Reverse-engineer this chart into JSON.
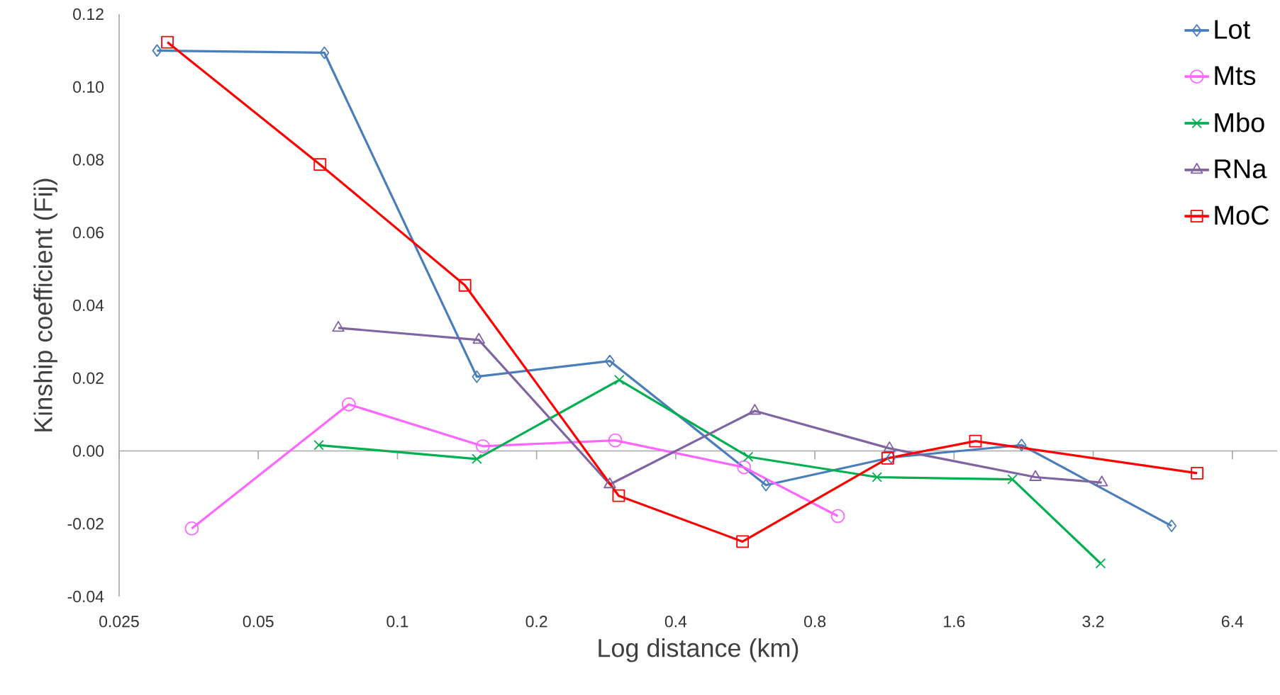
{
  "chart_data": {
    "type": "line",
    "xlabel": "Log distance (km)",
    "ylabel": "Kinship coefficient (Fij)",
    "log": "x",
    "xlim": [
      0.025,
      8
    ],
    "xticks": [
      0.025,
      0.05,
      0.1,
      0.2,
      0.4,
      0.8,
      1.6,
      3.2,
      6.4
    ],
    "ylim": [
      -0.04,
      0.12
    ],
    "yticks": [
      {
        "value": -0.04,
        "label": "-0.04"
      },
      {
        "value": -0.02,
        "label": "-0.02"
      },
      {
        "value": 0,
        "label": "0.00"
      },
      {
        "value": 0.02,
        "label": "0.02"
      },
      {
        "value": 0.04,
        "label": "0.04"
      },
      {
        "value": 0.06,
        "label": "0.06"
      },
      {
        "value": 0.08,
        "label": "0.08"
      },
      {
        "value": 0.1,
        "label": "0.10"
      },
      {
        "value": 0.12,
        "label": "0.12"
      }
    ],
    "legend": "top right",
    "line_style": "solid",
    "series": [
      {
        "name": "Lot",
        "color": "#4a7ebb",
        "marker": "diamond",
        "x": [
          0.0302,
          0.0695,
          0.1485,
          0.288,
          0.627,
          1.17,
          2.24,
          4.73
        ],
        "values": [
          0.11,
          0.1094,
          0.0204,
          0.0247,
          -0.0094,
          -0.0018,
          0.0016,
          -0.0206
        ]
      },
      {
        "name": "Mts",
        "color": "#ff66ff",
        "marker": "circle",
        "x": [
          0.0359,
          0.0785,
          0.153,
          0.296,
          0.562,
          0.897
        ],
        "values": [
          -0.0213,
          0.0128,
          0.0013,
          0.0029,
          -0.0045,
          -0.0179
        ]
      },
      {
        "name": "Mbo",
        "color": "#00b050",
        "marker": "cross",
        "x": [
          0.0676,
          0.1485,
          0.302,
          0.574,
          1.09,
          2.14,
          3.32
        ],
        "values": [
          0.0016,
          -0.0022,
          0.0195,
          -0.0016,
          -0.0072,
          -0.0078,
          -0.0309
        ]
      },
      {
        "name": "RNa",
        "color": "#8064a2",
        "marker": "triangle",
        "x": [
          0.0745,
          0.15,
          0.288,
          0.593,
          1.16,
          2.4,
          3.34
        ],
        "values": [
          0.0338,
          0.0305,
          -0.0092,
          0.011,
          0.0007,
          -0.0072,
          -0.0087
        ]
      },
      {
        "name": "MoC",
        "color": "#ff0000",
        "marker": "square",
        "x": [
          0.0318,
          0.068,
          0.14,
          0.301,
          0.558,
          1.15,
          1.78,
          5.37
        ],
        "values": [
          0.1123,
          0.0787,
          0.0455,
          -0.0123,
          -0.0249,
          -0.002,
          0.0027,
          -0.0061
        ]
      }
    ]
  }
}
